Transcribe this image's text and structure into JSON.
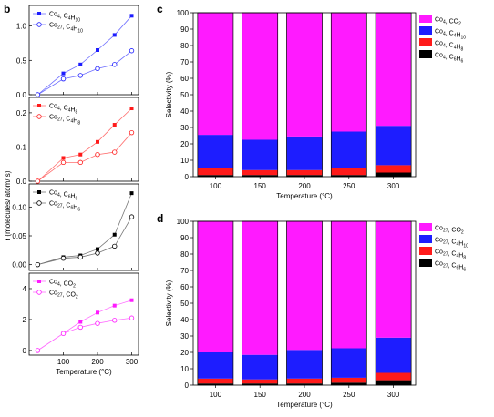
{
  "panel_labels": {
    "b": "b",
    "c": "c",
    "d": "d"
  },
  "colors": {
    "blue": "#1d1dff",
    "red": "#ff1a1a",
    "black": "#000000",
    "magenta": "#ff1aff",
    "line_blue": "#6f6fff",
    "line_red": "#ff6f6f",
    "line_black": "#777777",
    "line_magenta": "#ff6fff"
  },
  "chart_data": [
    {
      "id": "b1",
      "type": "line",
      "x": [
        25,
        100,
        150,
        200,
        250,
        300
      ],
      "xlim": [
        0,
        320
      ],
      "ylim": [
        0.0,
        1.3
      ],
      "yticks": [
        "0.0",
        "0.5",
        "1.0"
      ],
      "xticks": [],
      "xlabel": "",
      "ylabel": "",
      "series": [
        {
          "name": "Co4, C4H10",
          "label_main": "Co",
          "sub1": "4",
          "label_mid": ", C",
          "sub2": "4",
          "label_mid2": "H",
          "sub3": "10",
          "color_key": "blue",
          "marker": "filled-square",
          "values": [
            0.0,
            0.31,
            0.44,
            0.65,
            0.87,
            1.15
          ]
        },
        {
          "name": "Co27, C4H10",
          "label_main": "Co",
          "sub1": "27",
          "label_mid": ", C",
          "sub2": "4",
          "label_mid2": "H",
          "sub3": "10",
          "color_key": "blue",
          "marker": "open-circle",
          "values": [
            0.0,
            0.23,
            0.28,
            0.38,
            0.44,
            0.64
          ]
        }
      ]
    },
    {
      "id": "b2",
      "type": "line",
      "x": [
        25,
        100,
        150,
        200,
        250,
        300
      ],
      "xlim": [
        0,
        320
      ],
      "ylim": [
        0.0,
        0.245
      ],
      "yticks": [
        "0.0",
        "0.1",
        "0.2"
      ],
      "xticks": [],
      "xlabel": "",
      "ylabel": "",
      "series": [
        {
          "name": "Co4, C4H8",
          "label_main": "Co",
          "sub1": "4",
          "label_mid": ", C",
          "sub2": "4",
          "label_mid2": "H",
          "sub3": "8",
          "color_key": "red",
          "marker": "filled-square",
          "values": [
            0.0,
            0.068,
            0.078,
            0.115,
            0.165,
            0.213
          ]
        },
        {
          "name": "Co27, C4H8",
          "label_main": "Co",
          "sub1": "27",
          "label_mid": ", C",
          "sub2": "4",
          "label_mid2": "H",
          "sub3": "8",
          "color_key": "red",
          "marker": "open-circle",
          "values": [
            0.0,
            0.055,
            0.055,
            0.078,
            0.085,
            0.142
          ]
        }
      ]
    },
    {
      "id": "b3",
      "type": "line",
      "x": [
        25,
        100,
        150,
        200,
        250,
        300
      ],
      "xlim": [
        0,
        320
      ],
      "ylim": [
        -0.01,
        0.14
      ],
      "yticks": [
        "0.00",
        "0.05",
        "0.10"
      ],
      "xticks": [],
      "xlabel": "",
      "ylabel": "",
      "series": [
        {
          "name": "Co4, C6H6",
          "label_main": "Co",
          "sub1": "4",
          "label_mid": ", C",
          "sub2": "6",
          "label_mid2": "H",
          "sub3": "6",
          "color_key": "black",
          "marker": "filled-square",
          "values": [
            0.0,
            0.013,
            0.016,
            0.027,
            0.052,
            0.124
          ]
        },
        {
          "name": "Co27, C6H6",
          "label_main": "Co",
          "sub1": "27",
          "label_mid": ", C",
          "sub2": "6",
          "label_mid2": "H",
          "sub3": "6",
          "color_key": "black",
          "marker": "open-circle",
          "values": [
            0.0,
            0.011,
            0.013,
            0.02,
            0.032,
            0.083
          ]
        }
      ]
    },
    {
      "id": "b4",
      "type": "line",
      "x": [
        25,
        100,
        150,
        200,
        250,
        300
      ],
      "xlim": [
        0,
        320
      ],
      "ylim": [
        -0.3,
        5.0
      ],
      "yticks": [
        "0",
        "2",
        "4"
      ],
      "xticks": [
        "100",
        "200",
        "300"
      ],
      "xlabel": "Temperature (°C)",
      "ylabel": "",
      "series": [
        {
          "name": "Co4, CO2",
          "label_main": "Co",
          "sub1": "4",
          "label_mid": ", CO",
          "sub2": "2",
          "label_mid2": "",
          "sub3": "",
          "color_key": "magenta",
          "marker": "filled-square",
          "values": [
            0.0,
            1.1,
            1.85,
            2.45,
            2.9,
            3.25
          ]
        },
        {
          "name": "Co27, CO2",
          "label_main": "Co",
          "sub1": "27",
          "label_mid": ", CO",
          "sub2": "2",
          "label_mid2": "",
          "sub3": "",
          "color_key": "magenta",
          "marker": "open-circle",
          "values": [
            0.0,
            1.1,
            1.5,
            1.75,
            1.95,
            2.1
          ]
        }
      ]
    },
    {
      "id": "c",
      "type": "bar",
      "stacked": true,
      "categories": [
        "100",
        "150",
        "200",
        "250",
        "300"
      ],
      "ylim": [
        0,
        100
      ],
      "yticks": [
        "0",
        "10",
        "20",
        "30",
        "40",
        "50",
        "60",
        "70",
        "80",
        "90",
        "100"
      ],
      "xlabel": "Temperature (°C)",
      "ylabel": "Selectivity (%)",
      "series": [
        {
          "name": "Co4, C6H6",
          "label_main": "Co",
          "sub1": "4",
          "label_mid": ", C",
          "sub2": "6",
          "label_mid2": "H",
          "sub3": "6",
          "color_key": "black",
          "values": [
            1.0,
            1.0,
            1.0,
            1.0,
            2.5
          ]
        },
        {
          "name": "Co4, C4H8",
          "label_main": "Co",
          "sub1": "4",
          "label_mid": ", C",
          "sub2": "4",
          "label_mid2": "H",
          "sub3": "8",
          "color_key": "red",
          "values": [
            4.0,
            3.0,
            3.0,
            4.0,
            4.5
          ]
        },
        {
          "name": "Co4, C4H10",
          "label_main": "Co",
          "sub1": "4",
          "label_mid": ", C",
          "sub2": "4",
          "label_mid2": "H",
          "sub3": "10",
          "color_key": "blue",
          "values": [
            20.5,
            18.5,
            20.5,
            22.5,
            24.0
          ]
        },
        {
          "name": "Co4, CO2",
          "label_main": "Co",
          "sub1": "4",
          "label_mid": ", CO",
          "sub2": "2",
          "label_mid2": "",
          "sub3": "",
          "color_key": "magenta",
          "values": [
            74.5,
            77.5,
            75.5,
            72.5,
            69.0
          ]
        }
      ]
    },
    {
      "id": "d",
      "type": "bar",
      "stacked": true,
      "categories": [
        "100",
        "150",
        "200",
        "250",
        "300"
      ],
      "ylim": [
        0,
        100
      ],
      "yticks": [
        "0",
        "10",
        "20",
        "30",
        "40",
        "50",
        "60",
        "70",
        "80",
        "90",
        "100"
      ],
      "xlabel": "Temperature (°C)",
      "ylabel": "Selectivity (%)",
      "series": [
        {
          "name": "Co27, C6H6",
          "label_main": "Co",
          "sub1": "27",
          "label_mid": ", C",
          "sub2": "6",
          "label_mid2": "H",
          "sub3": "6",
          "color_key": "black",
          "values": [
            1.0,
            1.0,
            1.0,
            1.5,
            3.0
          ]
        },
        {
          "name": "Co27, C4H8",
          "label_main": "Co",
          "sub1": "27",
          "label_mid": ", C",
          "sub2": "4",
          "label_mid2": "H",
          "sub3": "8",
          "color_key": "red",
          "values": [
            3.0,
            2.5,
            3.0,
            3.0,
            4.5
          ]
        },
        {
          "name": "Co27, C4H10",
          "label_main": "Co",
          "sub1": "27",
          "label_mid": ", C",
          "sub2": "4",
          "label_mid2": "H",
          "sub3": "10",
          "color_key": "blue",
          "values": [
            16.0,
            15.0,
            17.5,
            18.0,
            21.5
          ]
        },
        {
          "name": "Co27, CO2",
          "label_main": "Co",
          "sub1": "27",
          "label_mid": ", CO",
          "sub2": "2",
          "label_mid2": "",
          "sub3": "",
          "color_key": "magenta",
          "values": [
            80.0,
            81.5,
            78.5,
            77.5,
            71.0
          ]
        }
      ]
    }
  ],
  "shared_labels": {
    "b_ylabel": "r (molecules/ atom/ s)"
  }
}
